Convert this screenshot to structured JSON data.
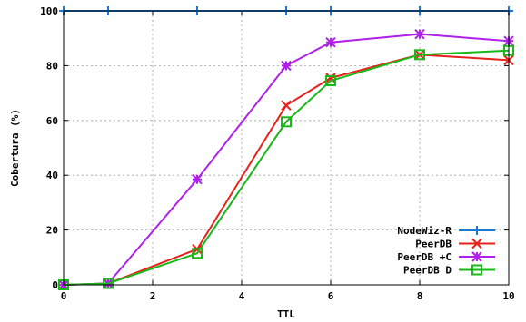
{
  "chart_data": {
    "type": "line",
    "title": "",
    "xlabel": "TTL",
    "ylabel": "Cobertura (%)",
    "xlim": [
      0,
      10
    ],
    "ylim": [
      0,
      100
    ],
    "xticks": [
      0,
      2,
      4,
      6,
      8,
      10
    ],
    "yticks": [
      0,
      20,
      40,
      60,
      80,
      100
    ],
    "grid": true,
    "legend_position": "bottom-right",
    "series": [
      {
        "name": "NodeWiz-R",
        "color": "#1f77d4",
        "marker": "plus",
        "x": [
          0,
          1,
          3,
          5,
          6,
          8,
          10
        ],
        "y": [
          100,
          100,
          100,
          100,
          100,
          100,
          100
        ]
      },
      {
        "name": "PeerDB",
        "color": "#e8211c",
        "marker": "cross",
        "x": [
          0,
          1,
          3,
          5,
          6,
          8,
          10
        ],
        "y": [
          0,
          0.5,
          13,
          65.5,
          75.5,
          84,
          82
        ]
      },
      {
        "name": "PeerDB +C",
        "color": "#b020e8",
        "marker": "star",
        "x": [
          0,
          1,
          3,
          5,
          6,
          8,
          10
        ],
        "y": [
          0,
          0.5,
          38.5,
          80,
          88.5,
          91.5,
          89
        ]
      },
      {
        "name": "PeerDB D",
        "color": "#18b818",
        "marker": "square",
        "x": [
          0,
          1,
          3,
          5,
          6,
          8,
          10
        ],
        "y": [
          0,
          0.5,
          11.5,
          59.5,
          74.5,
          84,
          85.5
        ]
      }
    ]
  }
}
